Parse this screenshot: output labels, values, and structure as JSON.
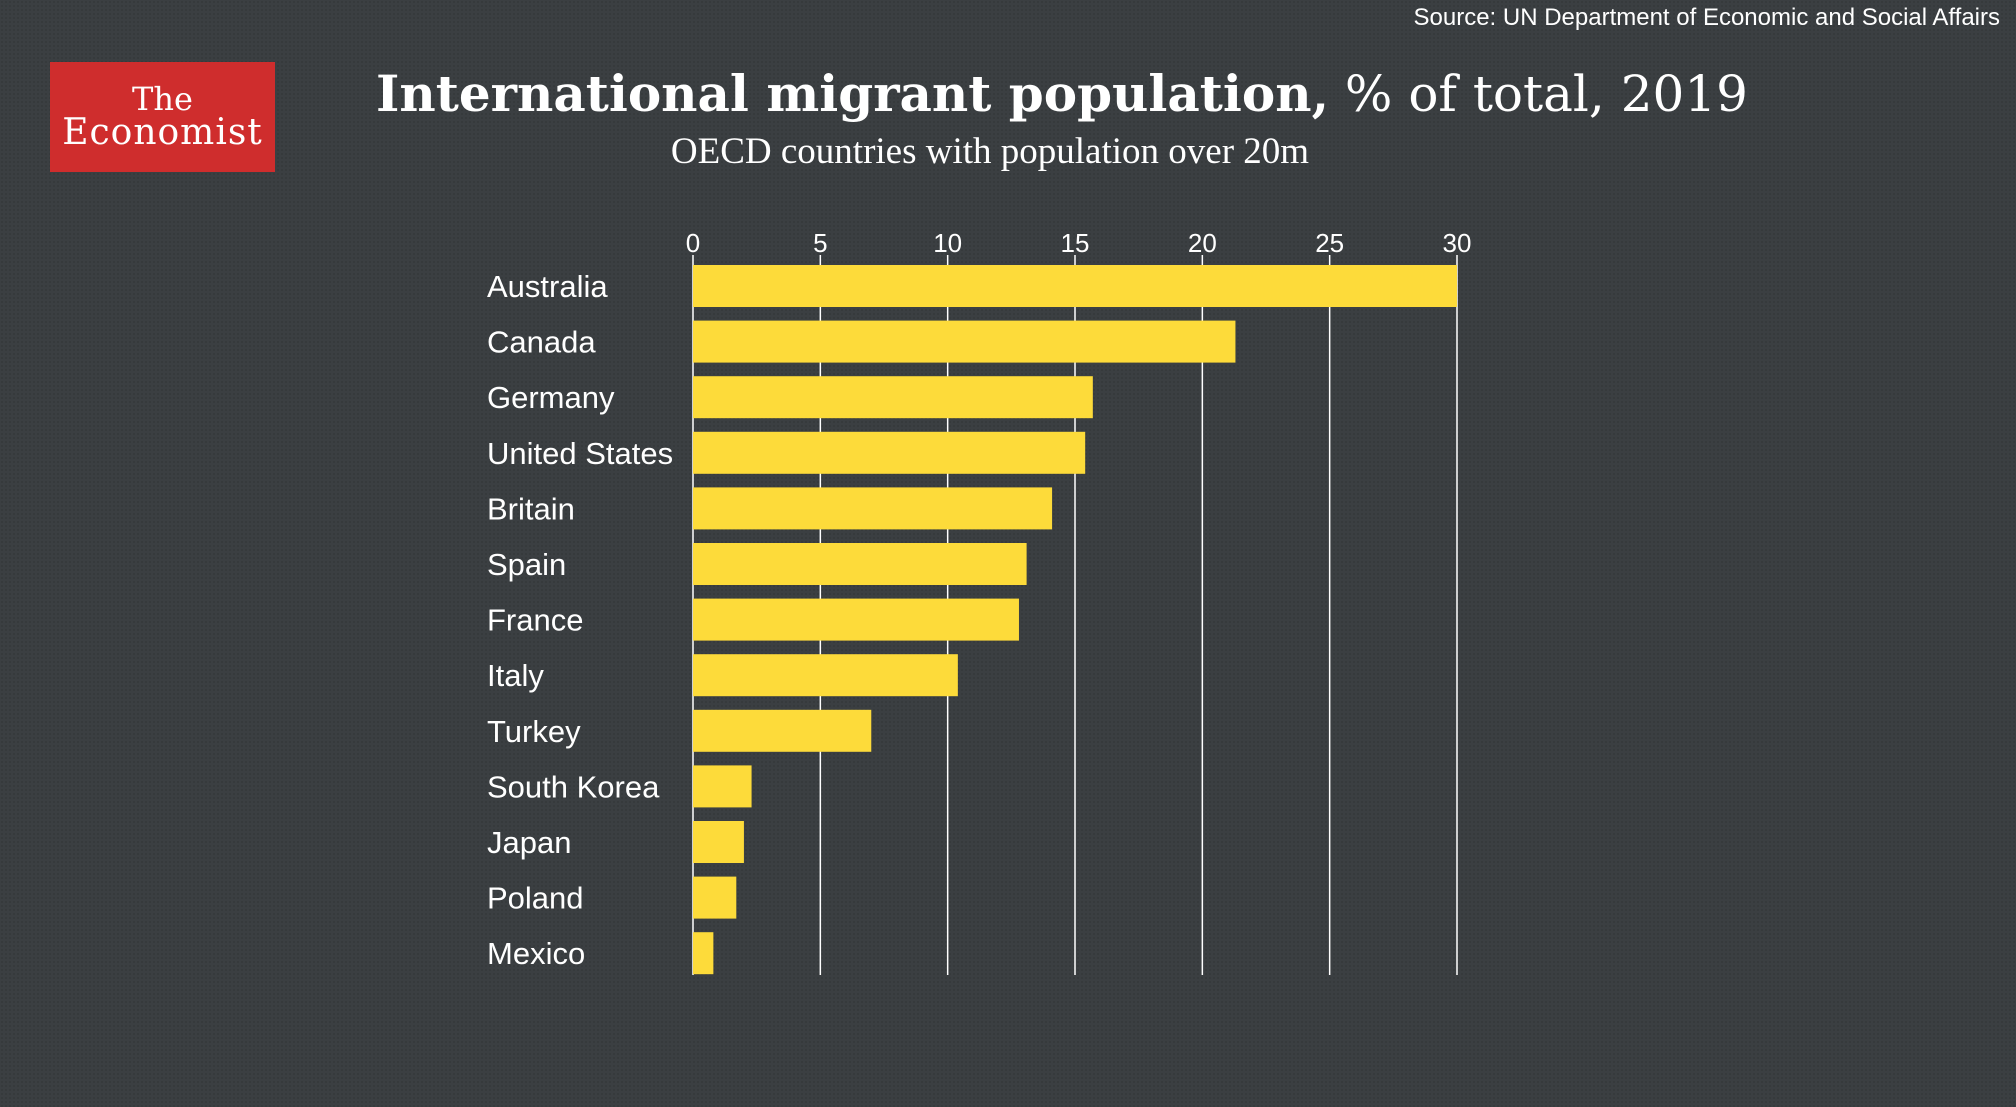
{
  "source": "Source: UN Department of Economic and Social Affairs",
  "logo": {
    "line1": "The",
    "line2": "Economist"
  },
  "header": {
    "title_bold": "International migrant population,",
    "title_rest": " % of total, 2019",
    "subtitle": "OECD countries with population over 20m"
  },
  "colors": {
    "background": "#3b3f42",
    "bar": "#fddb3a",
    "grid": "#ffffff",
    "logo": "#cf2d2d"
  },
  "chart_data": {
    "type": "bar",
    "orientation": "horizontal",
    "title": "International migrant population, % of total, 2019",
    "subtitle": "OECD countries with population over 20m",
    "categories": [
      "Australia",
      "Canada",
      "Germany",
      "United States",
      "Britain",
      "Spain",
      "France",
      "Italy",
      "Turkey",
      "South Korea",
      "Japan",
      "Poland",
      "Mexico"
    ],
    "values": [
      30.0,
      21.3,
      15.7,
      15.4,
      14.1,
      13.1,
      12.8,
      10.4,
      7.0,
      2.3,
      2.0,
      1.7,
      0.8
    ],
    "xlim": [
      0,
      30
    ],
    "ticks": [
      0,
      5,
      10,
      15,
      20,
      25,
      30
    ],
    "tick_position": "top",
    "grid": true
  }
}
